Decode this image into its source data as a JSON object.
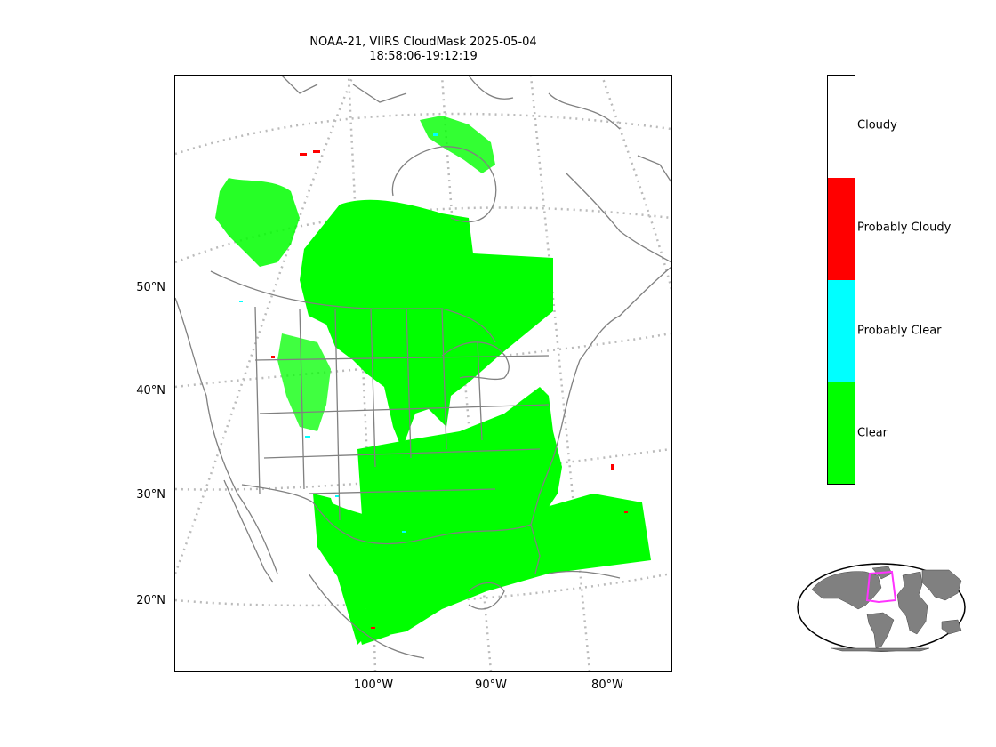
{
  "title": {
    "line1": "NOAA-21, VIIRS CloudMask 2025-05-04",
    "line2": "18:58:06-19:12:19"
  },
  "lat_labels": [
    "50°N",
    "40°N",
    "30°N",
    "20°N"
  ],
  "lon_labels": [
    "100°W",
    "90°W",
    "80°W"
  ],
  "legend": {
    "categories": [
      {
        "label": "Cloudy",
        "color": "#ffffff"
      },
      {
        "label": "Probably Cloudy",
        "color": "#ff0000"
      },
      {
        "label": "Probably Clear",
        "color": "#00ffff"
      },
      {
        "label": "Clear",
        "color": "#00ff00"
      }
    ]
  },
  "colors": {
    "clear": "#00ff00",
    "probably_clear": "#00ffff",
    "probably_cloudy": "#ff0000",
    "coastline": "#808080",
    "graticule": "#bbbbbb",
    "inset_land": "#808080",
    "inset_box": "#ff33ff"
  }
}
